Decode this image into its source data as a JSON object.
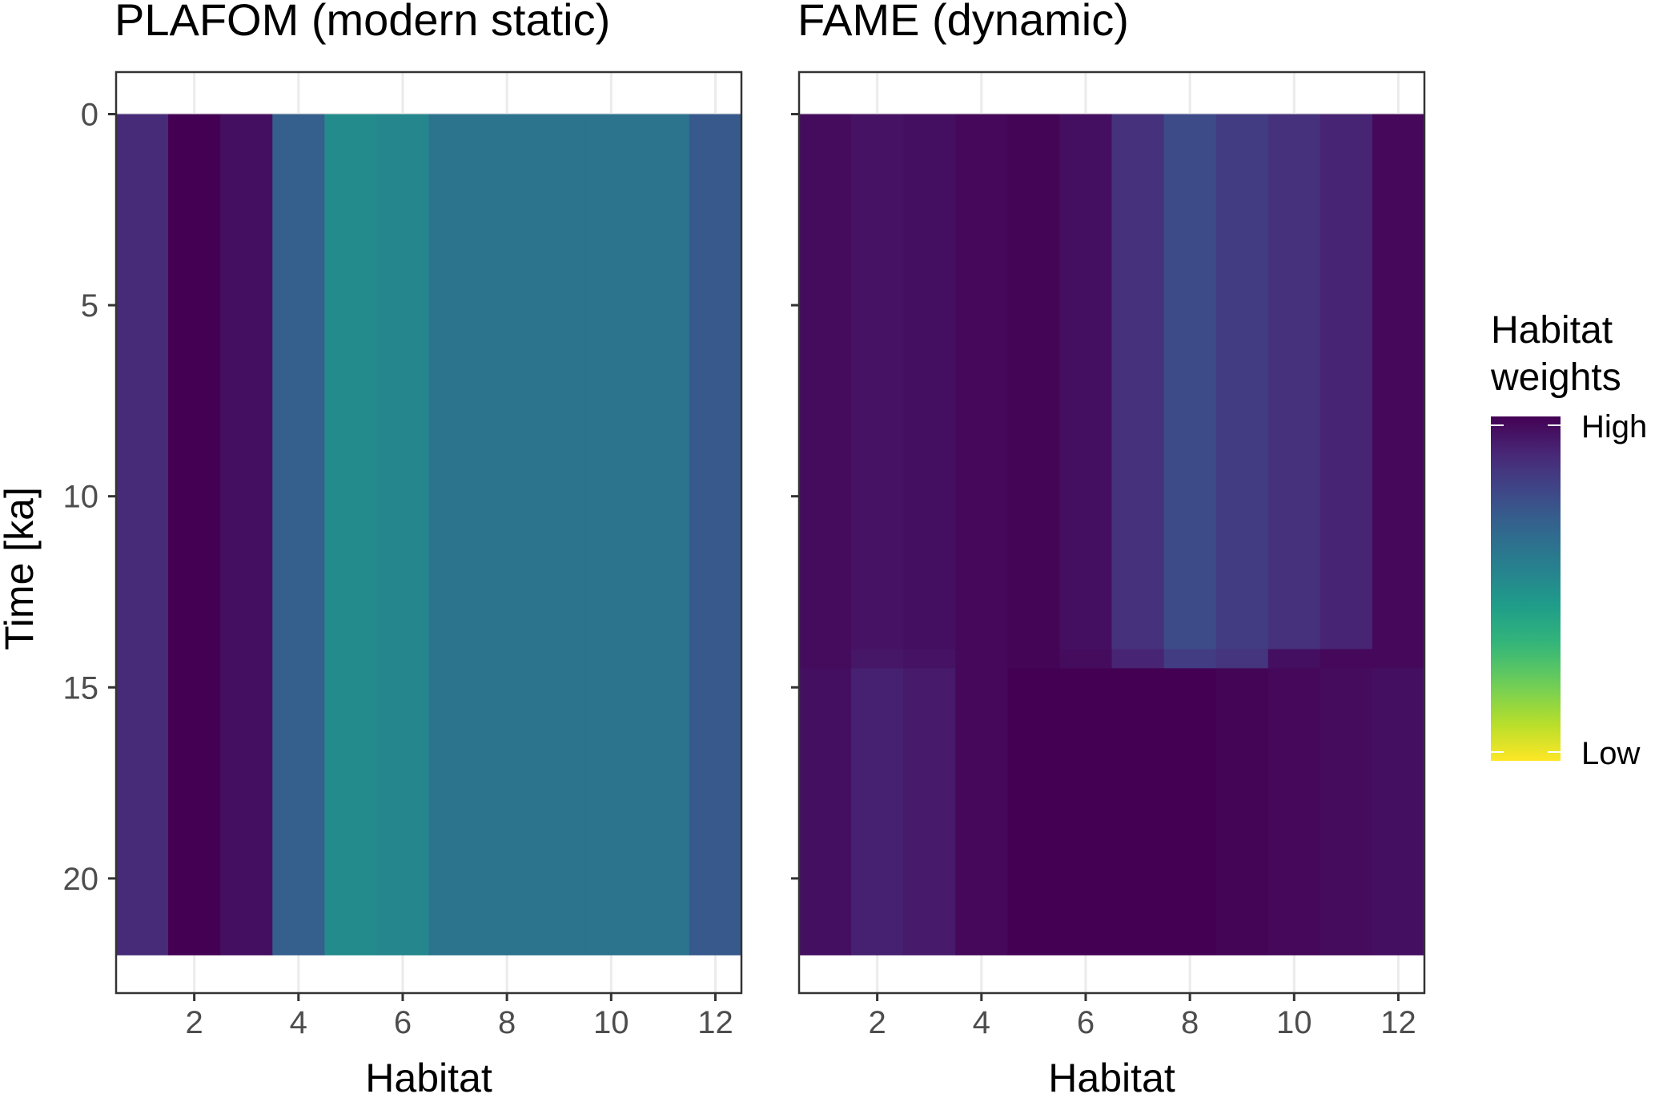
{
  "chart_data": [
    {
      "type": "heatmap",
      "title": "PLAFOM (modern static)",
      "xlabel": "Habitat",
      "ylabel": "Time [ka]",
      "x_ticks": [
        2,
        4,
        6,
        8,
        10,
        12
      ],
      "y_ticks": [
        0,
        5,
        10,
        15,
        20
      ],
      "xlim": [
        0.5,
        12.5
      ],
      "ylim": [
        23.0,
        -1.1
      ],
      "y_reversed": true,
      "time_range": [
        0,
        22
      ],
      "habitats": [
        1,
        2,
        3,
        4,
        5,
        6,
        7,
        8,
        9,
        10,
        11,
        12
      ],
      "weights": [
        0.88,
        1.0,
        0.96,
        0.7,
        0.52,
        0.54,
        0.62,
        0.62,
        0.62,
        0.62,
        0.62,
        0.72
      ]
    },
    {
      "type": "heatmap",
      "title": "FAME (dynamic)",
      "xlabel": "Habitat",
      "x_ticks": [
        2,
        4,
        6,
        8,
        10,
        12
      ],
      "xlim": [
        0.5,
        12.5
      ],
      "ylim": [
        23.0,
        -1.1
      ],
      "y_reversed": true,
      "time_range": [
        0,
        22
      ],
      "habitats": [
        1,
        2,
        3,
        4,
        5,
        6,
        7,
        8,
        9,
        10,
        11,
        12
      ],
      "weight_bands": [
        {
          "t": [
            0,
            14
          ],
          "weights": [
            0.97,
            0.95,
            0.96,
            0.98,
            0.99,
            0.96,
            0.86,
            0.77,
            0.82,
            0.86,
            0.9,
            0.98
          ]
        },
        {
          "t": [
            14,
            14.5
          ],
          "weights": [
            0.97,
            0.94,
            0.95,
            0.98,
            0.99,
            0.97,
            0.9,
            0.82,
            0.85,
            0.96,
            0.98,
            0.98
          ]
        },
        {
          "t": [
            14.5,
            22
          ],
          "weights": [
            0.96,
            0.91,
            0.93,
            0.98,
            1.0,
            1.0,
            1.0,
            1.0,
            0.99,
            0.98,
            0.97,
            0.96
          ]
        }
      ]
    }
  ],
  "legend": {
    "title_line1": "Habitat",
    "title_line2": "weights",
    "high_label": "High",
    "low_label": "Low"
  },
  "colors": {
    "viridis": [
      "#440154",
      "#482878",
      "#3e4989",
      "#31688e",
      "#26828e",
      "#1f9e89",
      "#35b779",
      "#6ece58",
      "#b5de2b",
      "#fde725"
    ],
    "panel_border": "#333333",
    "grid": "#ebebeb"
  }
}
